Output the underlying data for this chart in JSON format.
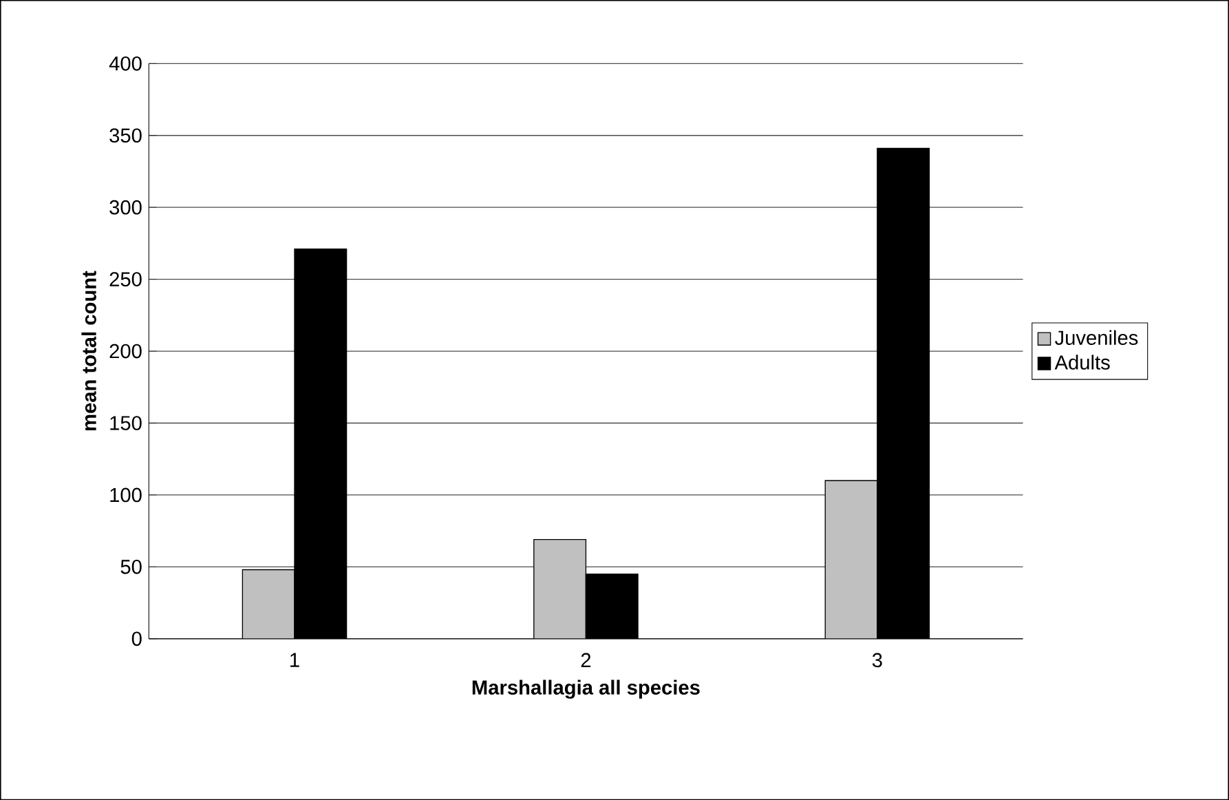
{
  "chart_data": {
    "type": "bar",
    "xlabel": "Marshallagia    all species",
    "ylabel": "mean total count",
    "categories": [
      "1",
      "2",
      "3"
    ],
    "series": [
      {
        "name": "Juveniles",
        "color": "#c0c0c0",
        "values": [
          48,
          69,
          110
        ]
      },
      {
        "name": "Adults",
        "color": "#000000",
        "values": [
          271,
          45,
          341
        ]
      }
    ],
    "ylim": [
      0,
      400
    ],
    "yticks": [
      0,
      50,
      100,
      150,
      200,
      250,
      300,
      350,
      400
    ],
    "grid": "y",
    "legend": "right"
  }
}
